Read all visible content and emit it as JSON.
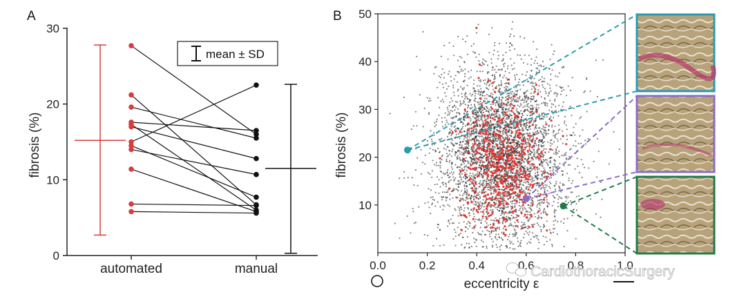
{
  "figure": {
    "panel_a_letter": "A",
    "panel_b_letter": "B",
    "watermark": "CardiothoracicSurgery",
    "watermark_icon": "wechat-icon",
    "footer_circle_icon": "circle-icon"
  },
  "colors": {
    "automated": "#d83c3c",
    "manual": "#111111",
    "axis": "#222222",
    "cloud": "#1a1a1a",
    "red_points": "#e53935",
    "teal": "#2a9bb0",
    "purple": "#8a6cc8",
    "green": "#1f7a4a"
  },
  "chart_data": [
    {
      "type": "paired-dot",
      "panel": "A",
      "title": "",
      "ylabel": "fibrosis (%)",
      "xlabel": "",
      "ylim": [
        0,
        31
      ],
      "yticks": [
        0,
        10,
        20,
        30
      ],
      "yticklabels": [
        "0",
        "10",
        "20",
        "30"
      ],
      "categories": [
        "automated",
        "manual"
      ],
      "pairs": [
        [
          27.7,
          16.0
        ],
        [
          21.2,
          6.7
        ],
        [
          19.6,
          15.5
        ],
        [
          17.6,
          16.5
        ],
        [
          17.3,
          6.0
        ],
        [
          17.0,
          12.8
        ],
        [
          15.0,
          22.5
        ],
        [
          14.5,
          7.7
        ],
        [
          14.0,
          10.7
        ],
        [
          11.4,
          5.8
        ],
        [
          6.8,
          6.6
        ],
        [
          5.8,
          5.6
        ]
      ],
      "summary": {
        "automated": {
          "mean": 15.2,
          "upper": 27.8,
          "lower": 2.7
        },
        "manual": {
          "mean": 11.5,
          "upper": 22.6,
          "lower": 0.3
        }
      },
      "legend": {
        "label": "mean ± SD",
        "placement": "top-right"
      }
    },
    {
      "type": "scatter",
      "panel": "B",
      "title": "",
      "xlabel": "eccentricity ε",
      "ylabel": "fibrosis (%)",
      "xlim": [
        0.0,
        1.0
      ],
      "ylim": [
        0,
        50
      ],
      "xticks": [
        0.0,
        0.2,
        0.4,
        0.6,
        0.8,
        1.0
      ],
      "xticklabels": [
        "0.0",
        "0.2",
        "0.4",
        "0.6",
        "0.8",
        "1.0"
      ],
      "yticks": [
        10,
        20,
        30,
        40,
        50
      ],
      "yticklabels": [
        "10",
        "20",
        "30",
        "40",
        "50"
      ],
      "cloud": {
        "center_x": 0.5,
        "center_y": 21,
        "note": "dense black point cloud"
      },
      "red_points": {
        "center_x": 0.5,
        "center_y": 18,
        "note": "red sample points"
      },
      "highlighted": [
        {
          "name": "teal",
          "x": 0.12,
          "y": 21.5,
          "color": "#2a9bb0"
        },
        {
          "name": "purple",
          "x": 0.6,
          "y": 11.3,
          "color": "#8a6cc8"
        },
        {
          "name": "green",
          "x": 0.75,
          "y": 9.8,
          "color": "#1f7a4a"
        }
      ],
      "insets": [
        "teal",
        "purple",
        "green"
      ]
    }
  ]
}
